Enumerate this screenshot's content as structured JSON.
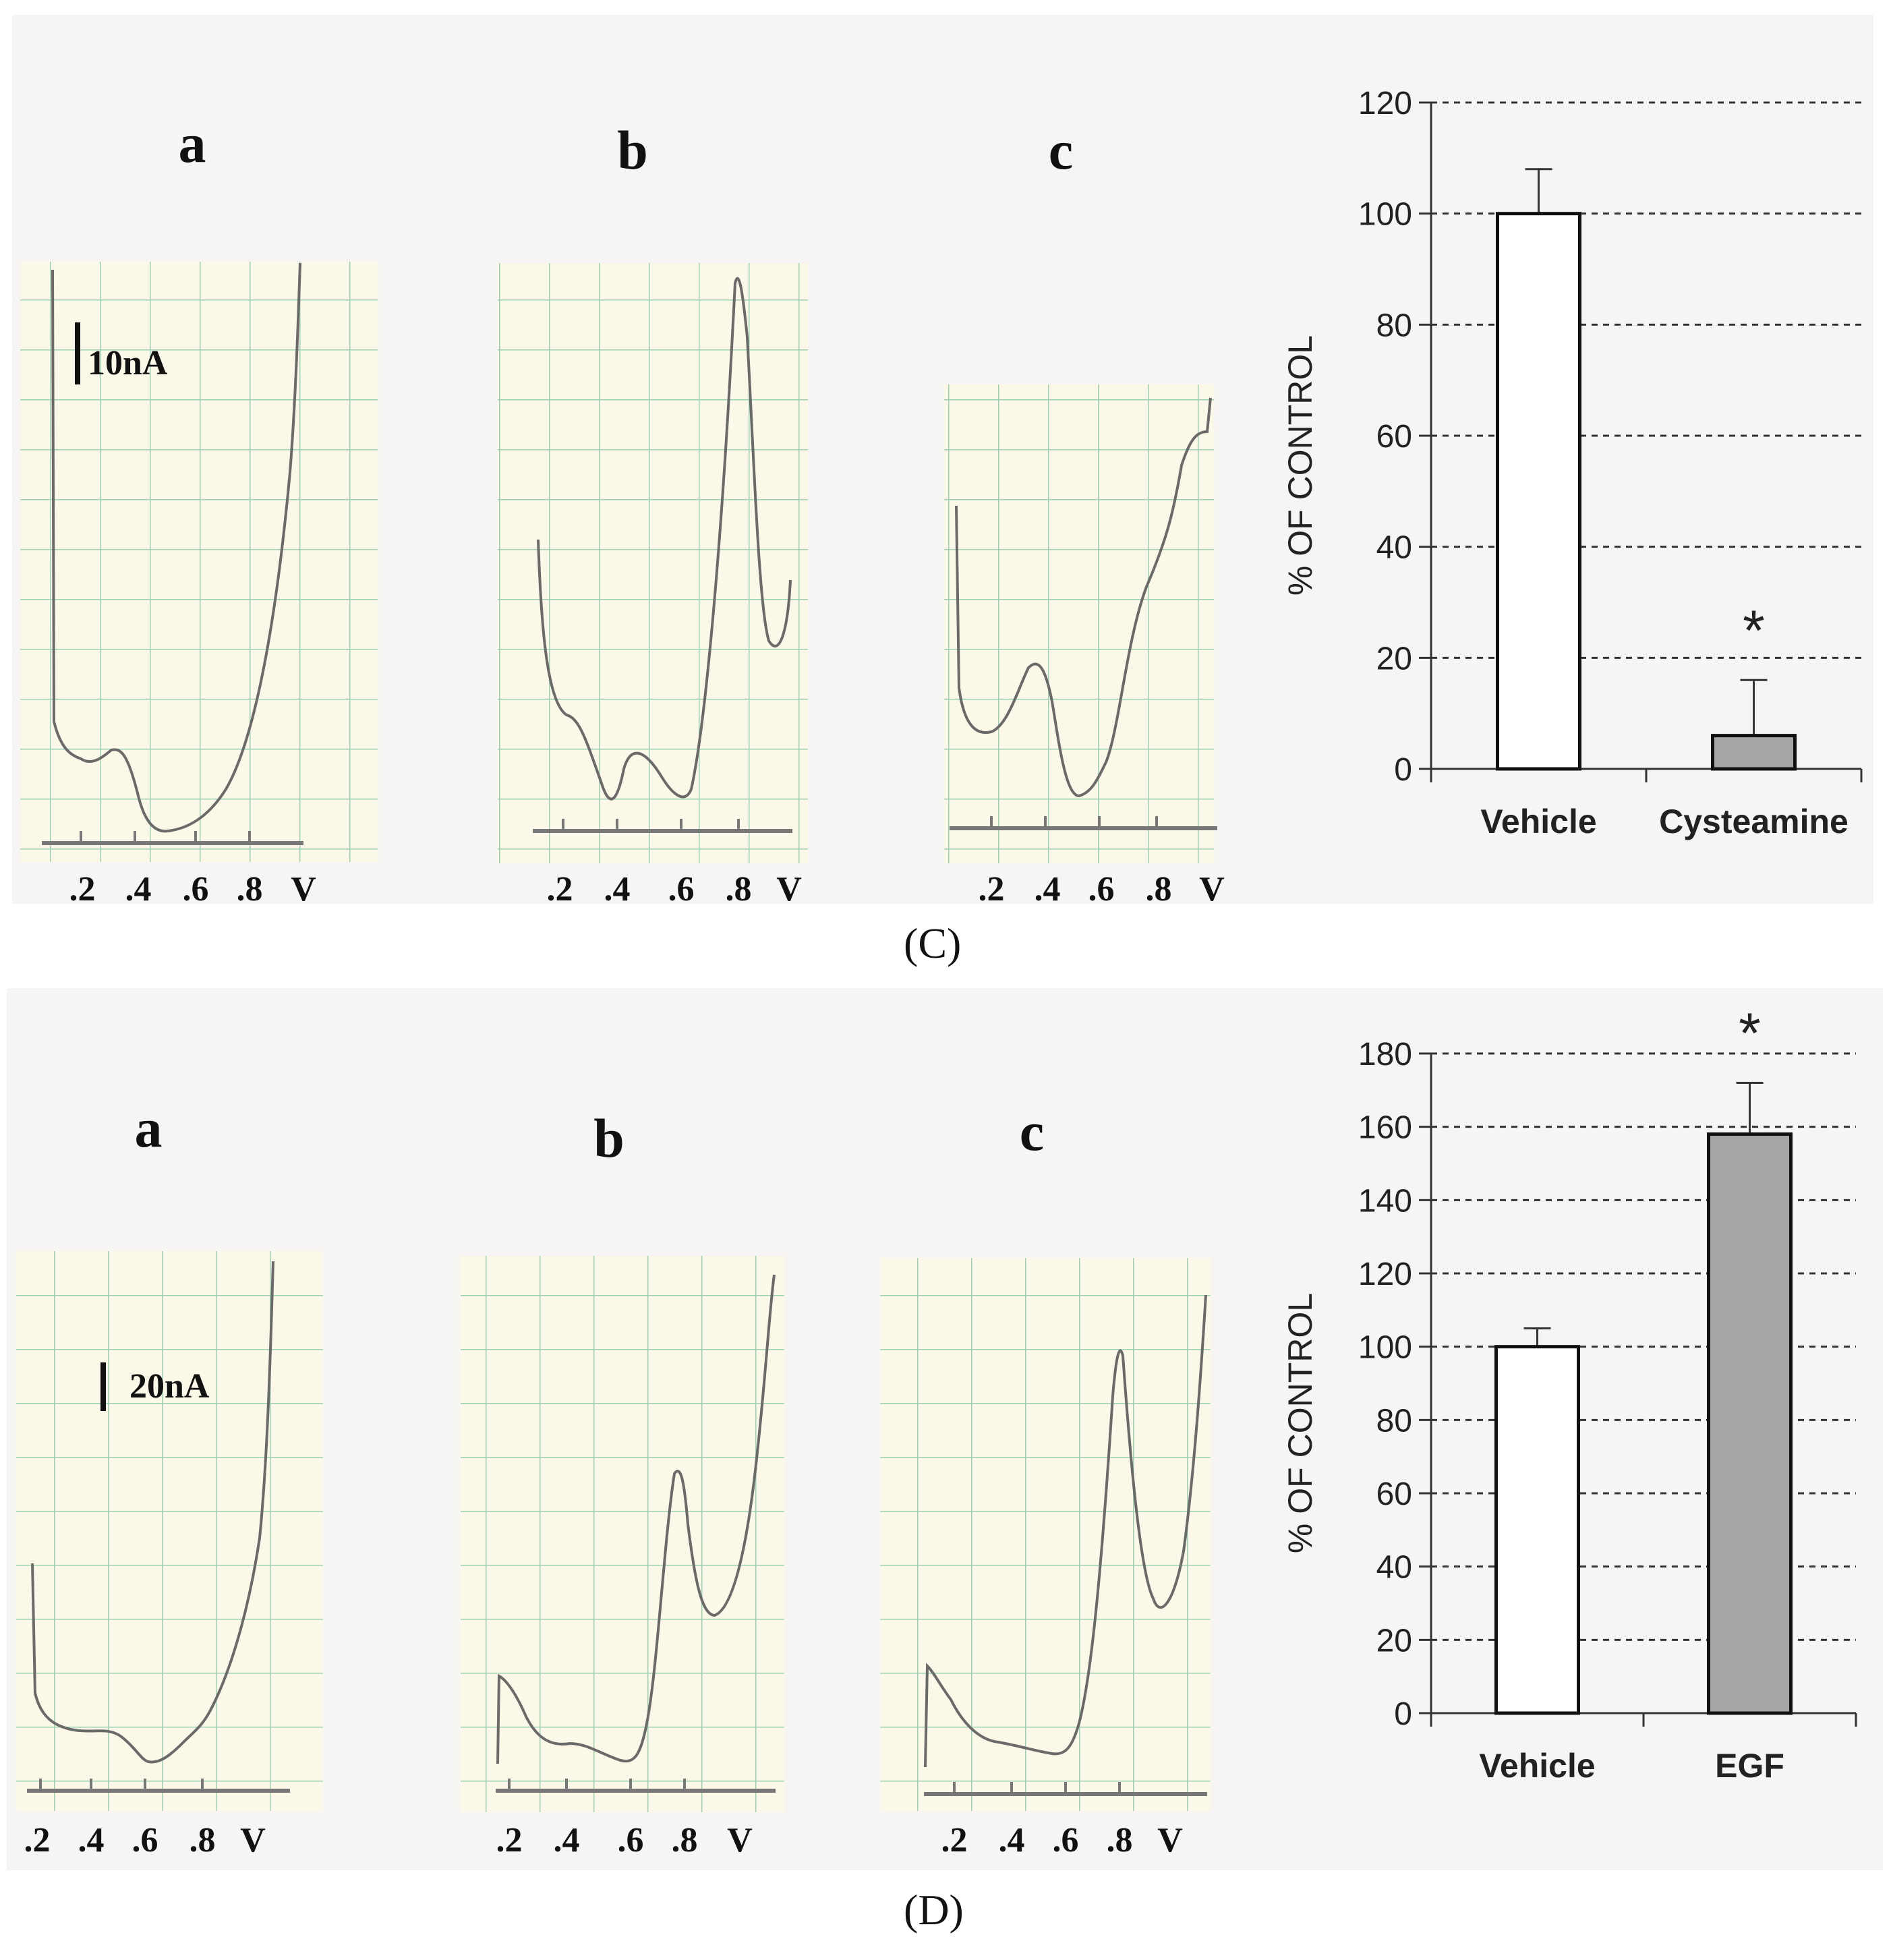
{
  "panels": [
    {
      "caption": "(C)",
      "trace_labels": [
        "a",
        "b",
        "c"
      ],
      "scale_bar": "10nA",
      "axis_ticks": [
        ".2",
        ".4",
        ".6",
        ".8",
        "V"
      ],
      "bar_chart": {
        "ylabel": "% OF CONTROL",
        "significance_marker": "*"
      }
    },
    {
      "caption": "(D)",
      "trace_labels": [
        "a",
        "b",
        "c"
      ],
      "scale_bar": "20nA",
      "axis_ticks": [
        ".2",
        ".4",
        ".6",
        ".8",
        "V"
      ],
      "bar_chart": {
        "ylabel": "% OF CONTROL",
        "significance_marker": "*"
      }
    }
  ],
  "chart_data": [
    {
      "type": "bar",
      "title": "",
      "xlabel": "",
      "ylabel": "% OF CONTROL",
      "categories": [
        "Vehicle",
        "Cysteamine"
      ],
      "values": [
        100,
        6
      ],
      "errors": [
        8,
        10
      ],
      "colors": [
        "#ffffff",
        "#a6a6a6"
      ],
      "ylim": [
        0,
        120
      ],
      "yticks": [
        0,
        20,
        40,
        60,
        80,
        100,
        120
      ],
      "gridlines": "dashed",
      "significant": [
        false,
        true
      ]
    },
    {
      "type": "bar",
      "title": "",
      "xlabel": "",
      "ylabel": "% OF CONTROL",
      "categories": [
        "Vehicle",
        "EGF"
      ],
      "values": [
        100,
        158
      ],
      "errors": [
        5,
        14
      ],
      "colors": [
        "#ffffff",
        "#a6a6a6"
      ],
      "ylim": [
        0,
        180
      ],
      "yticks": [
        0,
        20,
        40,
        60,
        80,
        100,
        120,
        140,
        160,
        180
      ],
      "gridlines": "dashed",
      "significant": [
        false,
        true
      ]
    }
  ]
}
